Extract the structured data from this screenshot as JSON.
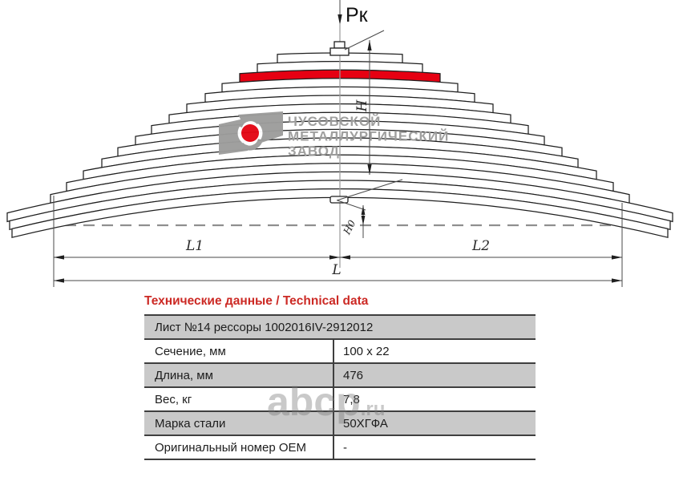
{
  "colors": {
    "highlight_leaf": "#e60012",
    "logo_gray": "#9d9d9c",
    "logo_red": "#e30613",
    "heading_red": "#cc2a25"
  },
  "diagram": {
    "force_label": "Pк",
    "dim_height": "H",
    "dim_height0": "H0",
    "dim_left": "L1",
    "dim_right": "L2",
    "dim_total": "L",
    "logo_line1": "ЧУСОВСКОЙ",
    "logo_line2": "МЕТАЛЛУРГИЧЕСКИЙ",
    "logo_line3": "ЗАВОД"
  },
  "heading": "Технические данные / Technical data",
  "table": {
    "header": "Лист №14 рессоры 1002016IV-2912012",
    "rows": [
      {
        "label": "Сечение, мм",
        "value": "100 x 22"
      },
      {
        "label": "Длина, мм",
        "value": "476"
      },
      {
        "label": "Вес, кг",
        "value": "7,8"
      },
      {
        "label": "Марка стали",
        "value": "50ХГФА"
      },
      {
        "label": "Оригинальный номер OEM",
        "value": "-"
      }
    ]
  },
  "watermark": {
    "name": "abcp",
    "tld": ".ru"
  }
}
